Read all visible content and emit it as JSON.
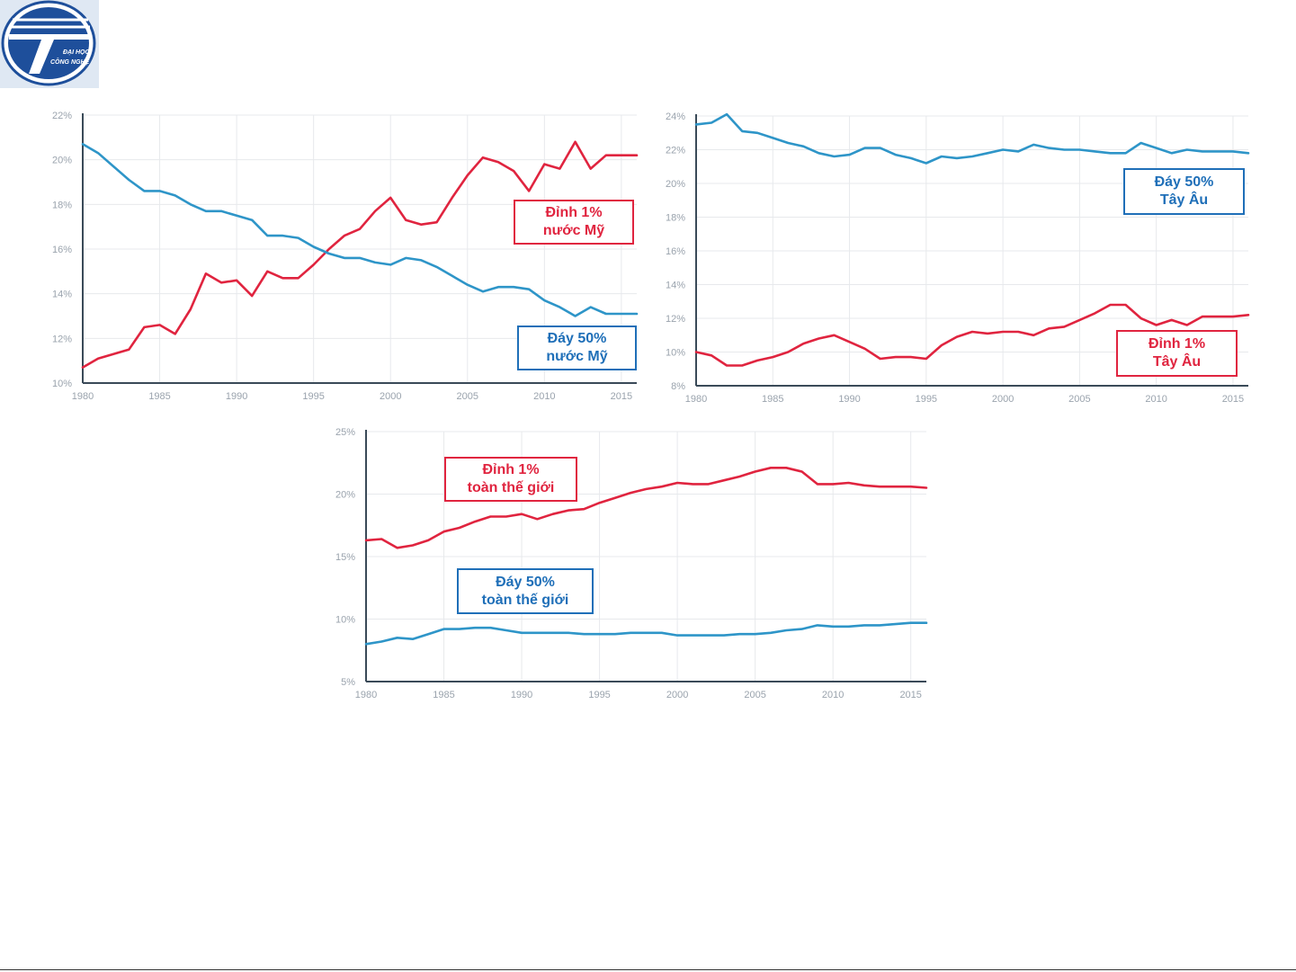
{
  "logo": {
    "lines": [
      "ĐẠI HỌC",
      "CÔNG NGHỆ"
    ]
  },
  "colors": {
    "top": "#e0243f",
    "bottom": "#2e95c8",
    "top_box": "#e0243f",
    "bottom_box": "#1f6fb8"
  },
  "chart_data": [
    {
      "type": "line",
      "xlim": [
        1980,
        2016
      ],
      "xticks": [
        1980,
        1985,
        1990,
        1995,
        2000,
        2005,
        2010,
        2015
      ],
      "ylim": [
        10,
        22
      ],
      "yticks": [
        10,
        12,
        14,
        16,
        18,
        20,
        22
      ],
      "ytick_labels": [
        "10%",
        "12%",
        "14%",
        "16%",
        "18%",
        "20%",
        "22%"
      ],
      "grid": true,
      "series": [
        {
          "name": "Đỉnh 1% nước Mỹ",
          "role": "top",
          "label_lines": [
            "Đỉnh 1%",
            "nước Mỹ"
          ],
          "x": [
            1980,
            1981,
            1982,
            1983,
            1984,
            1985,
            1986,
            1987,
            1988,
            1989,
            1990,
            1991,
            1992,
            1993,
            1994,
            1995,
            1996,
            1997,
            1998,
            1999,
            2000,
            2001,
            2002,
            2003,
            2004,
            2005,
            2006,
            2007,
            2008,
            2009,
            2010,
            2011,
            2012,
            2013,
            2014,
            2015,
            2016
          ],
          "values": [
            10.7,
            11.1,
            11.3,
            11.5,
            12.5,
            12.6,
            12.2,
            13.3,
            14.9,
            14.5,
            14.6,
            13.9,
            15.0,
            14.7,
            14.7,
            15.3,
            16.0,
            16.6,
            16.9,
            17.7,
            18.3,
            17.3,
            17.1,
            17.2,
            18.3,
            19.3,
            20.1,
            19.9,
            19.5,
            18.6,
            19.8,
            19.6,
            20.8,
            19.6,
            20.2,
            20.2,
            20.2
          ]
        },
        {
          "name": "Đáy 50% nước Mỹ",
          "role": "bottom",
          "label_lines": [
            "Đáy 50%",
            "nước Mỹ"
          ],
          "x": [
            1980,
            1981,
            1982,
            1983,
            1984,
            1985,
            1986,
            1987,
            1988,
            1989,
            1990,
            1991,
            1992,
            1993,
            1994,
            1995,
            1996,
            1997,
            1998,
            1999,
            2000,
            2001,
            2002,
            2003,
            2004,
            2005,
            2006,
            2007,
            2008,
            2009,
            2010,
            2011,
            2012,
            2013,
            2014,
            2015,
            2016
          ],
          "values": [
            20.7,
            20.3,
            19.7,
            19.1,
            18.6,
            18.6,
            18.4,
            18.0,
            17.7,
            17.7,
            17.5,
            17.3,
            16.6,
            16.6,
            16.5,
            16.1,
            15.8,
            15.6,
            15.6,
            15.4,
            15.3,
            15.6,
            15.5,
            15.2,
            14.8,
            14.4,
            14.1,
            14.3,
            14.3,
            14.2,
            13.7,
            13.4,
            13.0,
            13.4,
            13.1,
            13.1,
            13.1
          ]
        }
      ]
    },
    {
      "type": "line",
      "xlim": [
        1980,
        2016
      ],
      "xticks": [
        1980,
        1985,
        1990,
        1995,
        2000,
        2005,
        2010,
        2015
      ],
      "ylim": [
        8,
        24
      ],
      "yticks": [
        8,
        10,
        12,
        14,
        16,
        18,
        20,
        22,
        24
      ],
      "ytick_labels": [
        "8%",
        "10%",
        "12%",
        "14%",
        "16%",
        "18%",
        "20%",
        "22%",
        "24%"
      ],
      "grid": true,
      "series": [
        {
          "name": "Đáy 50% Tây Âu",
          "role": "bottom",
          "label_lines": [
            "Đáy 50%",
            "Tây Âu"
          ],
          "x": [
            1980,
            1981,
            1982,
            1983,
            1984,
            1985,
            1986,
            1987,
            1988,
            1989,
            1990,
            1991,
            1992,
            1993,
            1994,
            1995,
            1996,
            1997,
            1998,
            1999,
            2000,
            2001,
            2002,
            2003,
            2004,
            2005,
            2006,
            2007,
            2008,
            2009,
            2010,
            2011,
            2012,
            2013,
            2014,
            2015,
            2016
          ],
          "values": [
            23.5,
            23.6,
            24.1,
            23.1,
            23.0,
            22.7,
            22.4,
            22.2,
            21.8,
            21.6,
            21.7,
            22.1,
            22.1,
            21.7,
            21.5,
            21.2,
            21.6,
            21.5,
            21.6,
            21.8,
            22.0,
            21.9,
            22.3,
            22.1,
            22.0,
            22.0,
            21.9,
            21.8,
            21.8,
            22.4,
            22.1,
            21.8,
            22.0,
            21.9,
            21.9,
            21.9,
            21.8
          ]
        },
        {
          "name": "Đỉnh 1% Tây Âu",
          "role": "top",
          "label_lines": [
            "Đỉnh 1%",
            "Tây Âu"
          ],
          "x": [
            1980,
            1981,
            1982,
            1983,
            1984,
            1985,
            1986,
            1987,
            1988,
            1989,
            1990,
            1991,
            1992,
            1993,
            1994,
            1995,
            1996,
            1997,
            1998,
            1999,
            2000,
            2001,
            2002,
            2003,
            2004,
            2005,
            2006,
            2007,
            2008,
            2009,
            2010,
            2011,
            2012,
            2013,
            2014,
            2015,
            2016
          ],
          "values": [
            10.0,
            9.8,
            9.2,
            9.2,
            9.5,
            9.7,
            10.0,
            10.5,
            10.8,
            11.0,
            10.6,
            10.2,
            9.6,
            9.7,
            9.7,
            9.6,
            10.4,
            10.9,
            11.2,
            11.1,
            11.2,
            11.2,
            11.0,
            11.4,
            11.5,
            11.9,
            12.3,
            12.8,
            12.8,
            12.0,
            11.6,
            11.9,
            11.6,
            12.1,
            12.1,
            12.1,
            12.2
          ]
        }
      ]
    },
    {
      "type": "line",
      "xlim": [
        1980,
        2016
      ],
      "xticks": [
        1980,
        1985,
        1990,
        1995,
        2000,
        2005,
        2010,
        2015
      ],
      "ylim": [
        5,
        25
      ],
      "yticks": [
        5,
        10,
        15,
        20,
        25
      ],
      "ytick_labels": [
        "5%",
        "10%",
        "15%",
        "20%",
        "25%"
      ],
      "grid": true,
      "series": [
        {
          "name": "Đỉnh 1% toàn thế giới",
          "role": "top",
          "label_lines": [
            "Đỉnh 1%",
            "toàn thế giới"
          ],
          "x": [
            1980,
            1981,
            1982,
            1983,
            1984,
            1985,
            1986,
            1987,
            1988,
            1989,
            1990,
            1991,
            1992,
            1993,
            1994,
            1995,
            1996,
            1997,
            1998,
            1999,
            2000,
            2001,
            2002,
            2003,
            2004,
            2005,
            2006,
            2007,
            2008,
            2009,
            2010,
            2011,
            2012,
            2013,
            2014,
            2015,
            2016
          ],
          "values": [
            16.3,
            16.4,
            15.7,
            15.9,
            16.3,
            17.0,
            17.3,
            17.8,
            18.2,
            18.2,
            18.4,
            18.0,
            18.4,
            18.7,
            18.8,
            19.3,
            19.7,
            20.1,
            20.4,
            20.6,
            20.9,
            20.8,
            20.8,
            21.1,
            21.4,
            21.8,
            22.1,
            22.1,
            21.8,
            20.8,
            20.8,
            20.9,
            20.7,
            20.6,
            20.6,
            20.6,
            20.5
          ]
        },
        {
          "name": "Đáy 50% toàn thế giới",
          "role": "bottom",
          "label_lines": [
            "Đáy 50%",
            "toàn thế giới"
          ],
          "x": [
            1980,
            1981,
            1982,
            1983,
            1984,
            1985,
            1986,
            1987,
            1988,
            1989,
            1990,
            1991,
            1992,
            1993,
            1994,
            1995,
            1996,
            1997,
            1998,
            1999,
            2000,
            2001,
            2002,
            2003,
            2004,
            2005,
            2006,
            2007,
            2008,
            2009,
            2010,
            2011,
            2012,
            2013,
            2014,
            2015,
            2016
          ],
          "values": [
            8.0,
            8.2,
            8.5,
            8.4,
            8.8,
            9.2,
            9.2,
            9.3,
            9.3,
            9.1,
            8.9,
            8.9,
            8.9,
            8.9,
            8.8,
            8.8,
            8.8,
            8.9,
            8.9,
            8.9,
            8.7,
            8.7,
            8.7,
            8.7,
            8.8,
            8.8,
            8.9,
            9.1,
            9.2,
            9.5,
            9.4,
            9.4,
            9.5,
            9.5,
            9.6,
            9.7,
            9.7
          ]
        }
      ]
    }
  ]
}
